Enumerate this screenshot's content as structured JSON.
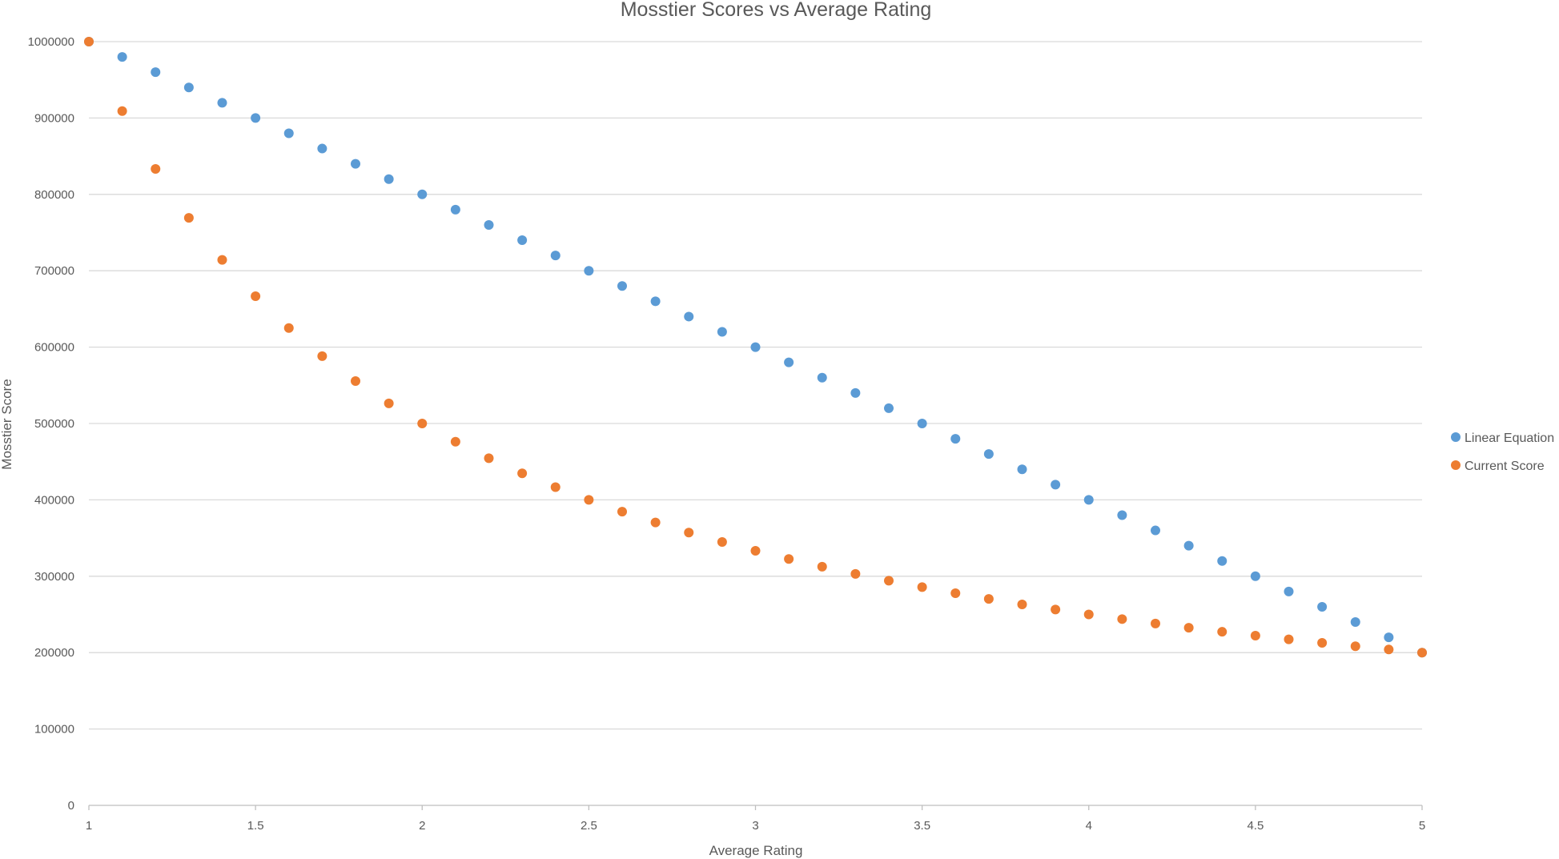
{
  "chart_data": {
    "type": "scatter",
    "title": "Mosstier Scores vs Average Rating",
    "xlabel": "Average Rating",
    "ylabel": "Mosstier Score",
    "xlim": [
      1,
      5
    ],
    "ylim": [
      0,
      1000000
    ],
    "x_ticks": [
      1,
      1.5,
      2,
      2.5,
      3,
      3.5,
      4,
      4.5,
      5
    ],
    "y_ticks": [
      0,
      100000,
      200000,
      300000,
      400000,
      500000,
      600000,
      700000,
      800000,
      900000,
      1000000
    ],
    "x_tick_labels": [
      "1",
      "1.5",
      "2",
      "2.5",
      "3",
      "3.5",
      "4",
      "4.5",
      "5"
    ],
    "y_tick_labels": [
      "0",
      "100000",
      "200000",
      "300000",
      "400000",
      "500000",
      "600000",
      "700000",
      "800000",
      "900000",
      "1000000"
    ],
    "grid": "horizontal",
    "legend_position": "right",
    "x": [
      1.0,
      1.1,
      1.2,
      1.3,
      1.4,
      1.5,
      1.6,
      1.7,
      1.8,
      1.9,
      2.0,
      2.1,
      2.2,
      2.3,
      2.4,
      2.5,
      2.6,
      2.7,
      2.8,
      2.9,
      3.0,
      3.1,
      3.2,
      3.3,
      3.4,
      3.5,
      3.6,
      3.7,
      3.8,
      3.9,
      4.0,
      4.1,
      4.2,
      4.3,
      4.4,
      4.5,
      4.6,
      4.7,
      4.8,
      4.9,
      5.0
    ],
    "series": [
      {
        "name": "Linear Equation",
        "color": "#5b9bd5",
        "values": [
          1000000,
          980000,
          960000,
          940000,
          920000,
          900000,
          880000,
          860000,
          840000,
          820000,
          800000,
          780000,
          760000,
          740000,
          720000,
          700000,
          680000,
          660000,
          640000,
          620000,
          600000,
          580000,
          560000,
          540000,
          520000,
          500000,
          480000,
          460000,
          440000,
          420000,
          400000,
          380000,
          360000,
          340000,
          320000,
          300000,
          280000,
          260000,
          240000,
          220000,
          200000
        ]
      },
      {
        "name": "Current Score",
        "color": "#ed7d31",
        "values": [
          1000000,
          909091,
          833333,
          769231,
          714286,
          666667,
          625000,
          588235,
          555556,
          526316,
          500000,
          476190,
          454545,
          434783,
          416667,
          400000,
          384615,
          370370,
          357143,
          344828,
          333333,
          322581,
          312500,
          303030,
          294118,
          285714,
          277778,
          270270,
          263158,
          256410,
          250000,
          243902,
          238095,
          232558,
          227273,
          222222,
          217391,
          212766,
          208333,
          204082,
          200000
        ]
      }
    ]
  }
}
